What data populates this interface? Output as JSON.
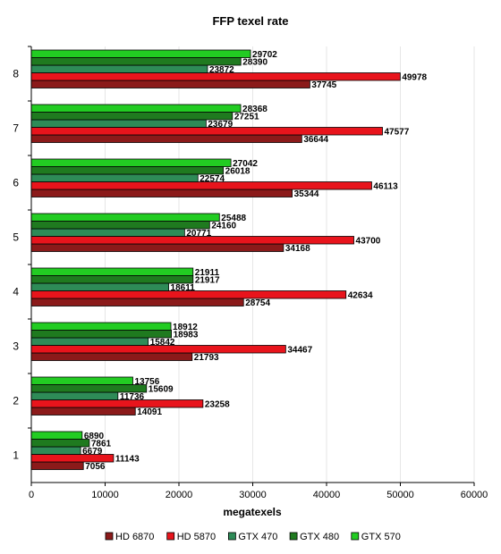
{
  "chart_data": {
    "type": "bar",
    "orientation": "horizontal",
    "title": "FFP texel rate",
    "xlabel": "megatexels",
    "ylabel": "",
    "xlim": [
      0,
      60000
    ],
    "xticks": [
      "0",
      "10000",
      "20000",
      "30000",
      "40000",
      "50000",
      "60000"
    ],
    "grid": true,
    "legend_position": "bottom",
    "categories": [
      "1",
      "2",
      "3",
      "4",
      "5",
      "6",
      "7",
      "8"
    ],
    "series": [
      {
        "name": "HD 6870",
        "color": "#8b1a1a",
        "values": [
          7056,
          14091,
          21793,
          28754,
          34168,
          35344,
          36644,
          37745
        ]
      },
      {
        "name": "HD 5870",
        "color": "#e8141c",
        "values": [
          11143,
          23258,
          34467,
          42634,
          43700,
          46113,
          47577,
          49978
        ]
      },
      {
        "name": "GTX 470",
        "color": "#2e8b57",
        "values": [
          6679,
          11736,
          15842,
          18611,
          20771,
          22574,
          23679,
          23872
        ]
      },
      {
        "name": "GTX 480",
        "color": "#1f7a1f",
        "values": [
          7861,
          15609,
          18983,
          21917,
          24160,
          26018,
          27251,
          28390
        ]
      },
      {
        "name": "GTX 570",
        "color": "#22cc22",
        "values": [
          6890,
          13756,
          18912,
          21911,
          25488,
          27042,
          28368,
          29702
        ]
      }
    ]
  }
}
